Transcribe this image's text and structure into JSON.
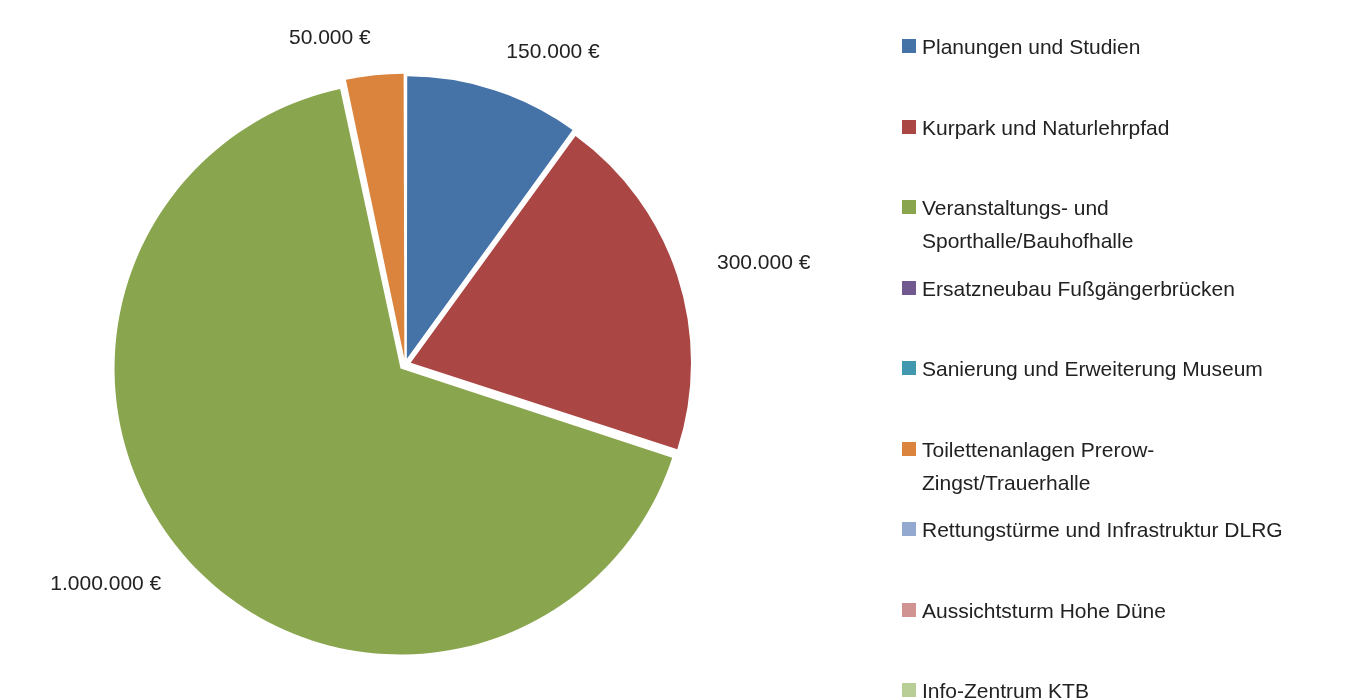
{
  "chart_data": {
    "type": "pie",
    "categories": [
      "Planungen und Studien",
      "Kurpark und Naturlehrpfad",
      "Veranstaltungs- und Sporthalle/Bauhofhalle",
      "Ersatzneubau Fußgängerbrücken",
      "Sanierung und Erweiterung Museum",
      "Toilettenanlagen Prerow-Zingst/Trauerhalle",
      "Rettungstürme und Infrastruktur DLRG",
      "Aussichtsturm Hohe Düne",
      "Info-Zentrum KTB"
    ],
    "values": [
      150000,
      300000,
      1000000,
      0,
      0,
      50000,
      0,
      0,
      0
    ],
    "value_labels": [
      "150.000 €",
      "300.000 €",
      "1.000.000 €",
      null,
      null,
      "50.000 €",
      null,
      null,
      null
    ],
    "colors": [
      "#4572a7",
      "#aa4643",
      "#89a54e",
      "#71588f",
      "#4198af",
      "#db843d",
      "#93a9cf",
      "#d19392",
      "#b9cd96"
    ],
    "legend": "right"
  }
}
